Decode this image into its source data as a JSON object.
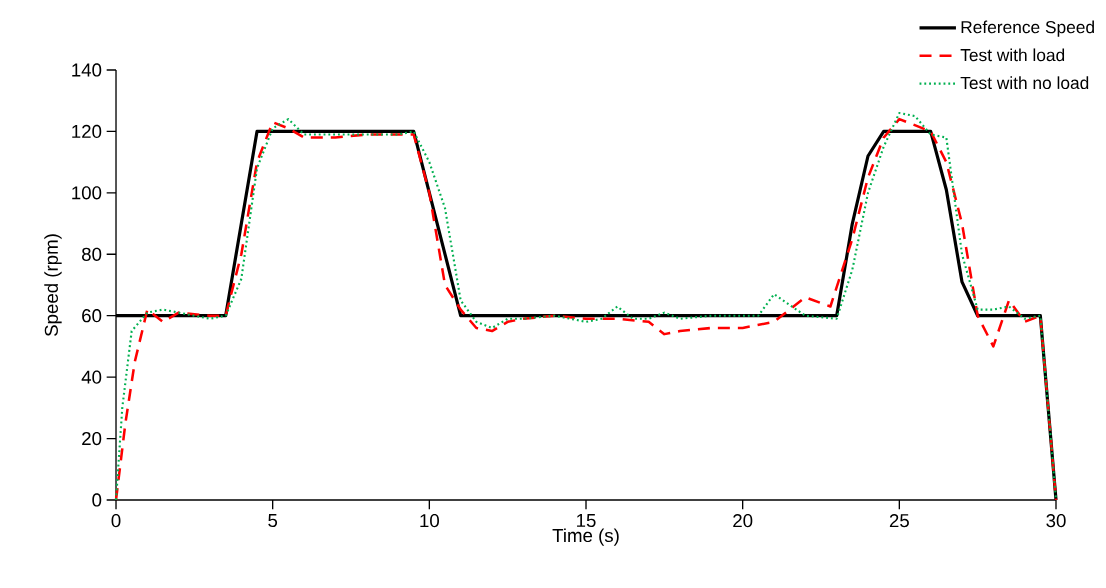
{
  "chart_data": {
    "type": "line",
    "xlabel": "Time (s)",
    "ylabel": "Speed (rpm)",
    "xlim": [
      0,
      30
    ],
    "ylim": [
      0,
      140
    ],
    "xticks": [
      0,
      5,
      10,
      15,
      20,
      25,
      30
    ],
    "yticks": [
      0,
      20,
      40,
      60,
      80,
      100,
      120,
      140
    ],
    "grid": false,
    "legend": "top right",
    "marker": "none",
    "series": [
      {
        "name": "Reference Speed",
        "color": "#000000",
        "line_style": "solid",
        "x": [
          0,
          3.5,
          4.5,
          9.5,
          11,
          23,
          23.5,
          24,
          24.5,
          26,
          26.5,
          27,
          27.5,
          29.5,
          30
        ],
        "values": [
          60,
          60,
          120,
          120,
          60,
          60,
          90,
          112,
          120,
          120,
          101,
          71,
          60,
          60,
          0
        ]
      },
      {
        "name": "Test with load",
        "color": "#ff0000",
        "line_style": "dashed",
        "x": [
          0,
          0.3,
          0.6,
          1,
          1.5,
          2,
          3,
          3.5,
          4,
          4.5,
          5,
          5.5,
          6,
          7,
          8,
          9,
          9.5,
          10,
          10.5,
          11,
          11.5,
          12,
          12.5,
          13,
          14,
          15,
          16,
          17,
          17.5,
          18,
          19,
          20,
          21,
          22,
          22.8,
          23.5,
          24,
          24.5,
          25,
          26,
          26.5,
          27,
          27.5,
          28,
          28.5,
          29,
          29.5,
          30
        ],
        "values": [
          0,
          25,
          45,
          62,
          58,
          61,
          60,
          60,
          80,
          110,
          123,
          121,
          118,
          118,
          119,
          119,
          119,
          100,
          70,
          62,
          56,
          55,
          58,
          59,
          60,
          59,
          59,
          58,
          54,
          55,
          56,
          56,
          58,
          66,
          63,
          85,
          105,
          118,
          124,
          120,
          110,
          90,
          60,
          50,
          65,
          58,
          60,
          0
        ]
      },
      {
        "name": "Test with no load",
        "color": "#00b050",
        "line_style": "dotted",
        "x": [
          0,
          0.2,
          0.5,
          1,
          1.5,
          2,
          3,
          3.5,
          4,
          4.5,
          5,
          5.5,
          6,
          7,
          8,
          9,
          9.5,
          10,
          10.5,
          11,
          11.5,
          12,
          12.5,
          13,
          14,
          15,
          15.5,
          16,
          16.5,
          17,
          17.5,
          18,
          19,
          20,
          20.5,
          21,
          22,
          23,
          23.5,
          24,
          24.5,
          25,
          25.5,
          26,
          26.5,
          27,
          27.5,
          28,
          28.5,
          29,
          29.5,
          30
        ],
        "values": [
          0,
          30,
          55,
          61,
          62,
          61,
          59,
          60,
          72,
          108,
          121,
          124,
          119,
          119,
          119,
          119,
          120,
          110,
          95,
          65,
          58,
          56,
          59,
          59,
          60,
          58,
          59,
          63,
          59,
          59,
          61,
          59,
          60,
          60,
          60,
          67,
          60,
          59,
          75,
          100,
          115,
          126,
          125,
          119,
          118,
          80,
          62,
          62,
          63,
          59,
          60,
          0
        ]
      }
    ]
  }
}
